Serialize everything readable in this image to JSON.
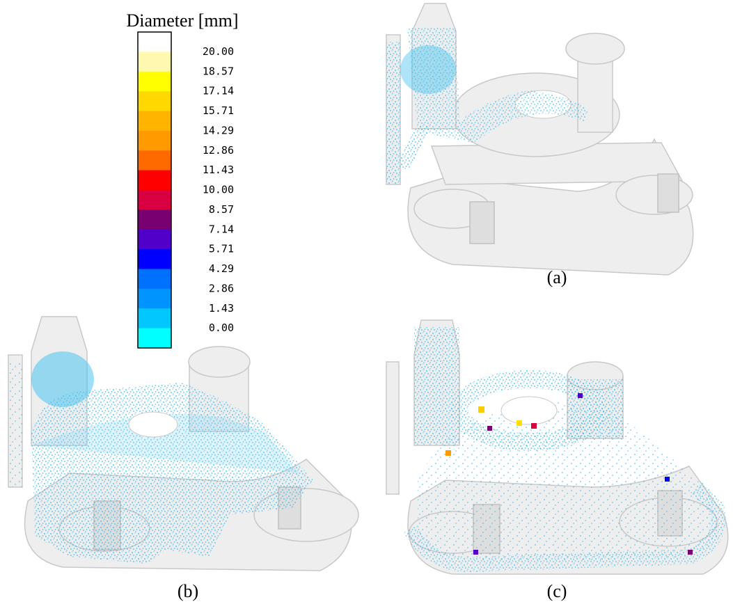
{
  "legend": {
    "title": "Diameter [mm]",
    "ticks": [
      "20.00",
      "18.57",
      "17.14",
      "15.71",
      "14.29",
      "12.86",
      "11.43",
      "10.00",
      "8.57",
      "7.14",
      "5.71",
      "4.29",
      "2.86",
      "1.43",
      "0.00"
    ],
    "colors": [
      "#ffffff",
      "#fff8b0",
      "#ffff00",
      "#ffd800",
      "#ffb400",
      "#ff9a00",
      "#ff6a00",
      "#ff0000",
      "#d80040",
      "#780070",
      "#5000c8",
      "#0000ff",
      "#0070ff",
      "#0094ff",
      "#00c8ff",
      "#00ffff"
    ]
  },
  "panels": [
    {
      "label": "(a)"
    },
    {
      "label": "(b)"
    },
    {
      "label": "(c)"
    }
  ]
}
